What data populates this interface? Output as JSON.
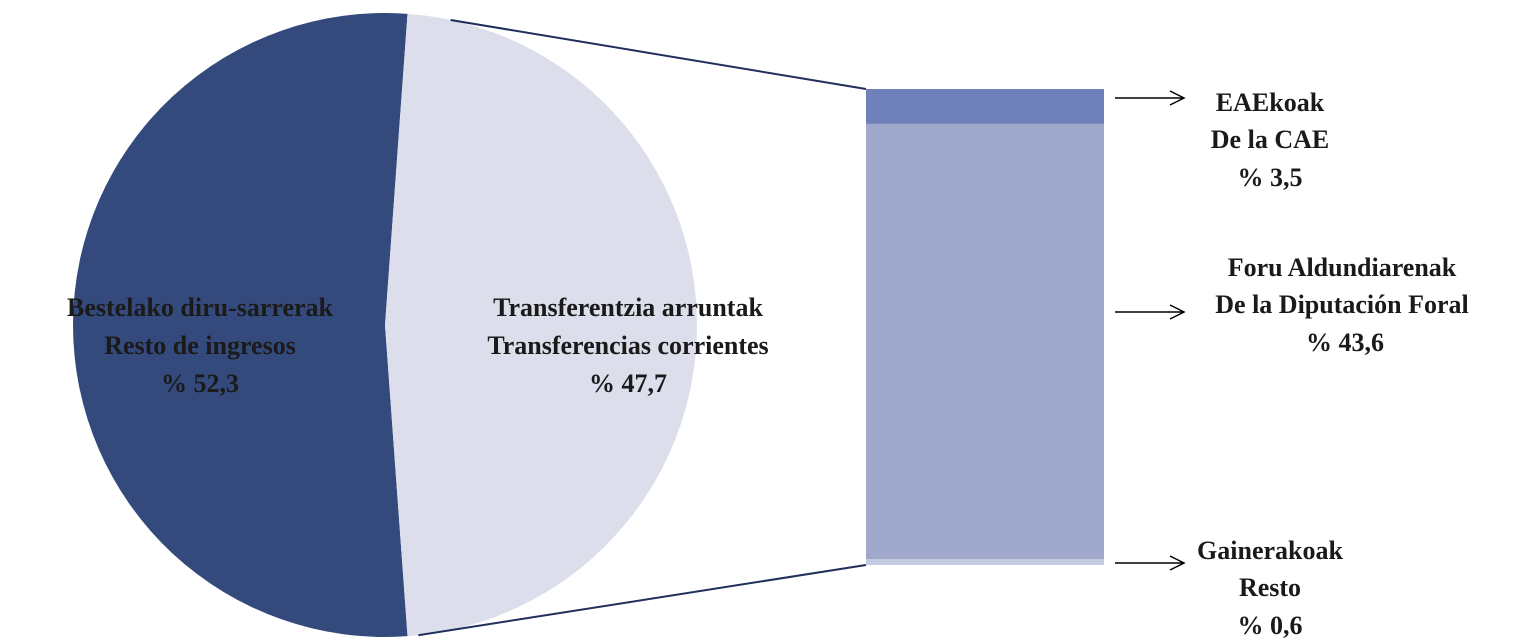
{
  "chart_data": [
    {
      "type": "pie",
      "labels": [
        [
          "Bestelako diru-sarrerak",
          "Resto de ingresos"
        ],
        [
          "Transferentzia arruntak",
          "Transferencias corrientes"
        ]
      ],
      "values": [
        52.3,
        47.7
      ],
      "value_labels": [
        "% 52,3",
        "% 47,7"
      ],
      "colors": [
        "#344a7c",
        "#dcdfeb"
      ]
    },
    {
      "type": "stacked-bar",
      "labels": [
        [
          "EAEkoak",
          "De la CAE"
        ],
        [
          "Foru Aldundiarenak",
          "De la Diputación Foral"
        ],
        [
          "Gainerakoak",
          "Resto"
        ]
      ],
      "values": [
        3.5,
        43.6,
        0.6
      ],
      "value_labels": [
        "% 3,5",
        "% 43,6",
        "% 0,6"
      ],
      "colors": [
        "#6f81b8",
        "#a0a8cb",
        "#c5cbe0"
      ]
    }
  ]
}
